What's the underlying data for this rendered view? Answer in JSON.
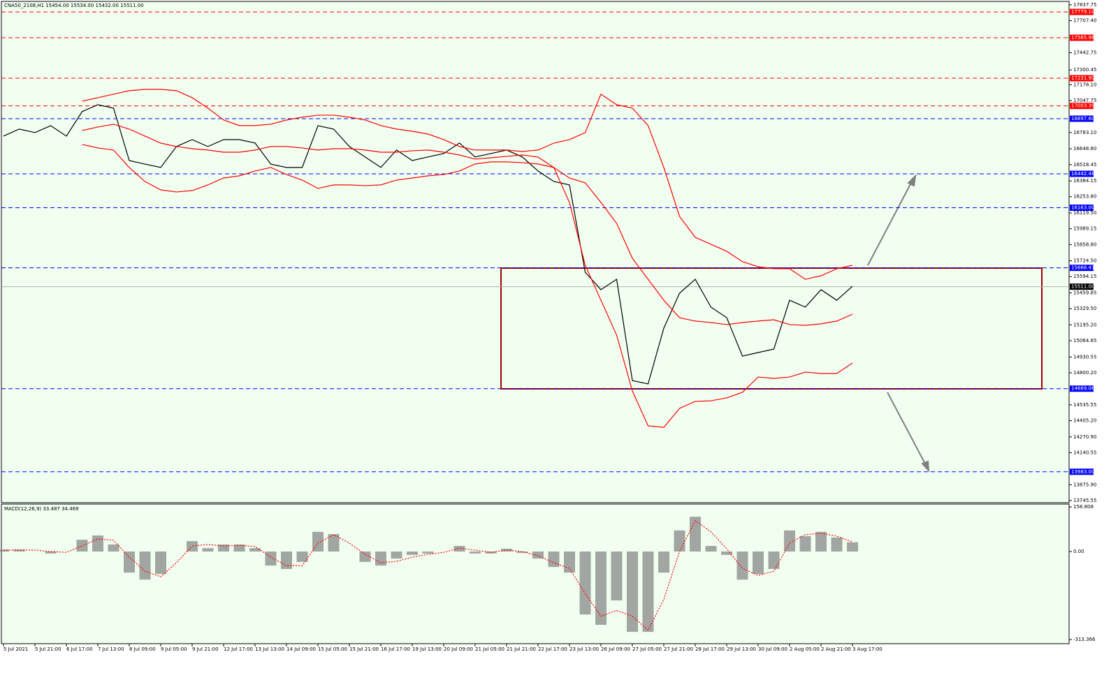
{
  "header": {
    "title": "CNA50_2108,H1  15454.00 15534.00 15432.00 15511.00"
  },
  "chart_data": [
    {
      "type": "line",
      "categories": [
        "5 Jul 2021",
        null,
        "5 Jul 21:00",
        null,
        "6 Jul 17:00",
        null,
        "7 Jul 13:00",
        null,
        "8 Jul 09:00",
        null,
        "9 Jul 05:00",
        null,
        "9 Jul 21:00",
        null,
        "12 Jul 17:00",
        null,
        "13 Jul 13:00",
        null,
        "14 Jul 09:00",
        null,
        "15 Jul 05:00",
        null,
        "15 Jul 21:00",
        null,
        "16 Jul 17:00",
        null,
        "19 Jul 13:00",
        null,
        "20 Jul 09:00",
        null,
        "21 Jul 05:00",
        null,
        "21 Jul 21:00",
        null,
        "22 Jul 17:00",
        null,
        "23 Jul 13:00",
        null,
        "26 Jul 09:00",
        null,
        "27 Jul 05:00",
        null,
        "27 Jul 21:00",
        null,
        "28 Jul 17:00",
        null,
        "29 Jul 13:00",
        null,
        "30 Jul 09:00",
        null,
        "2 Aug 05:00",
        null,
        "2 Aug 21:00",
        null,
        "3 Aug 17:00"
      ],
      "series": [
        {
          "color": "#000000",
          "values": [
            16754,
            16812,
            16783,
            16840,
            16754,
            16956,
            17013,
            16985,
            16552,
            16523,
            16495,
            16668,
            16725,
            16668,
            16725,
            16725,
            16697,
            16523,
            16495,
            16495,
            16840,
            16812,
            16668,
            16582,
            16495,
            16639,
            16552,
            16582,
            16610,
            16697,
            16582,
            16610,
            16639,
            16582,
            16466,
            16380,
            16351,
            15630,
            15486,
            15572,
            14736,
            14708,
            15169,
            15457,
            15572,
            15342,
            15255,
            14938,
            14967,
            14996,
            15399,
            15342,
            15486,
            15399,
            15515
          ]
        },
        {
          "color": "#ff0000",
          "values": [
            null,
            null,
            null,
            null,
            null,
            17042,
            17071,
            17100,
            17129,
            17140,
            17140,
            17129,
            17071,
            16985,
            16887,
            16841,
            16841,
            16852,
            16887,
            16910,
            16927,
            16927,
            16910,
            16887,
            16841,
            16812,
            16794,
            16771,
            16725,
            16668,
            16639,
            16639,
            16639,
            16627,
            16639,
            16696,
            16725,
            16783,
            17100,
            17013,
            16985,
            16841,
            16495,
            16091,
            15918,
            15861,
            15803,
            15717,
            15676,
            15659,
            15659,
            15572,
            15601,
            15659,
            15688
          ]
        },
        {
          "color": "#ff0000",
          "values": [
            null,
            null,
            null,
            null,
            null,
            16800,
            16829,
            16852,
            16812,
            16754,
            16696,
            16668,
            16650,
            16639,
            16621,
            16621,
            16639,
            16668,
            16668,
            16656,
            16639,
            16650,
            16650,
            16639,
            16621,
            16621,
            16633,
            16639,
            16621,
            16598,
            16564,
            16575,
            16587,
            16598,
            16581,
            16495,
            16408,
            16368,
            16206,
            16034,
            15745,
            15572,
            15399,
            15255,
            15227,
            15215,
            15198,
            15215,
            15227,
            15238,
            15198,
            15192,
            15204,
            15227,
            15284
          ]
        },
        {
          "color": "#ff0000",
          "values": [
            null,
            null,
            null,
            null,
            null,
            16685,
            16656,
            16639,
            16495,
            16379,
            16310,
            16293,
            16304,
            16351,
            16408,
            16426,
            16466,
            16495,
            16437,
            16391,
            16322,
            16351,
            16351,
            16345,
            16351,
            16391,
            16408,
            16426,
            16437,
            16466,
            16524,
            16541,
            16541,
            16535,
            16524,
            16495,
            16206,
            15688,
            15399,
            15111,
            14650,
            14362,
            14350,
            14506,
            14564,
            14569,
            14593,
            14639,
            14765,
            14754,
            14765,
            14806,
            14794,
            14794,
            14881
          ]
        }
      ],
      "ylim": [
        13728,
        17866
      ],
      "yticks": [
        17837.75,
        {
          "value": 17707.4,
          "label": "17707.40"
        },
        17442.75,
        17300.45,
        {
          "value": 17178.1,
          "label": "17178.10"
        },
        17047.75,
        {
          "value": 16783.1,
          "label": "16783.10"
        },
        {
          "value": 16648.8,
          "label": "16648.80"
        },
        16518.45,
        16384.15,
        {
          "value": 16253.8,
          "label": "16253.80"
        },
        {
          "value": 16119.5,
          "label": "16119.50"
        },
        15989.15,
        {
          "value": 15858.8,
          "label": "15858.80"
        },
        {
          "value": 15724.5,
          "label": "15724.50"
        },
        15594.15,
        15459.85,
        {
          "value": 15329.5,
          "label": "15329.50"
        },
        {
          "value": 15195.2,
          "label": "15195.20"
        },
        15064.85,
        14930.55,
        {
          "value": 14800.2,
          "label": "14800.20"
        },
        14535.55,
        {
          "value": 14405.2,
          "label": "14405.20"
        },
        {
          "value": 14270.9,
          "label": "14270.90"
        },
        14140.55,
        {
          "value": 13875.9,
          "label": "13875.90"
        },
        13745.55
      ],
      "levels": [
        {
          "value": 17779.1,
          "label": "17779.10",
          "color": "#ff0000"
        },
        {
          "value": 17565.96,
          "label": "17565.96",
          "color": "#ff0000"
        },
        {
          "value": 17231.9,
          "label": "17231.90",
          "color": "#ff0000"
        },
        {
          "value": 17003.39,
          "label": "17003.39",
          "color": "#ff0000"
        },
        {
          "value": 16897.6,
          "label": "16897.60",
          "color": "#0000ff"
        },
        {
          "value": 16442.48,
          "label": "16442.48",
          "color": "#0000ff"
        },
        {
          "value": 16163,
          "label": "16163.00",
          "color": "#0000ff"
        },
        {
          "value": 15666.41,
          "label": "15666.41",
          "color": "#0000ff"
        },
        {
          "value": 14669.06,
          "label": "14669.06",
          "color": "#0000ff"
        },
        {
          "value": 13983,
          "label": "13983.00",
          "color": "#0000ff"
        }
      ],
      "current": {
        "value": 15511,
        "label": "15511.00",
        "color": "#000000"
      }
    },
    {
      "type": "bar",
      "title": "MACD(12,26,9) 33.487 34.469",
      "series": [
        {
          "type": "bar",
          "color": "#808080",
          "values": [
            7,
            7,
            0,
            -7,
            0,
            42,
            57,
            25,
            -75,
            -100,
            -80,
            0,
            37,
            12,
            25,
            25,
            12,
            -50,
            -62,
            -37,
            70,
            62,
            0,
            -37,
            -50,
            -25,
            -12,
            -7,
            0,
            20,
            -7,
            -7,
            10,
            -5,
            -25,
            -55,
            -75,
            -224,
            -261,
            -174,
            -286,
            -286,
            -75,
            75,
            124,
            20,
            -12,
            -100,
            -80,
            -62,
            75,
            55,
            70,
            50,
            33
          ]
        },
        {
          "type": "line",
          "color": "#ff0000",
          "values": [
            5,
            6,
            5,
            0,
            -3,
            20,
            45,
            40,
            -20,
            -70,
            -90,
            -40,
            20,
            25,
            20,
            22,
            18,
            -20,
            -50,
            -50,
            30,
            60,
            30,
            -10,
            -40,
            -35,
            -20,
            -10,
            -3,
            12,
            5,
            -3,
            5,
            0,
            -15,
            -40,
            -60,
            -150,
            -230,
            -210,
            -230,
            -280,
            -170,
            0,
            110,
            70,
            10,
            -60,
            -85,
            -70,
            30,
            60,
            65,
            55,
            34
          ]
        }
      ],
      "ylim": [
        -328,
        169
      ],
      "yticks": [
        158.808,
        {
          "value": 0,
          "label": "0.00"
        },
        -313.366
      ]
    }
  ]
}
